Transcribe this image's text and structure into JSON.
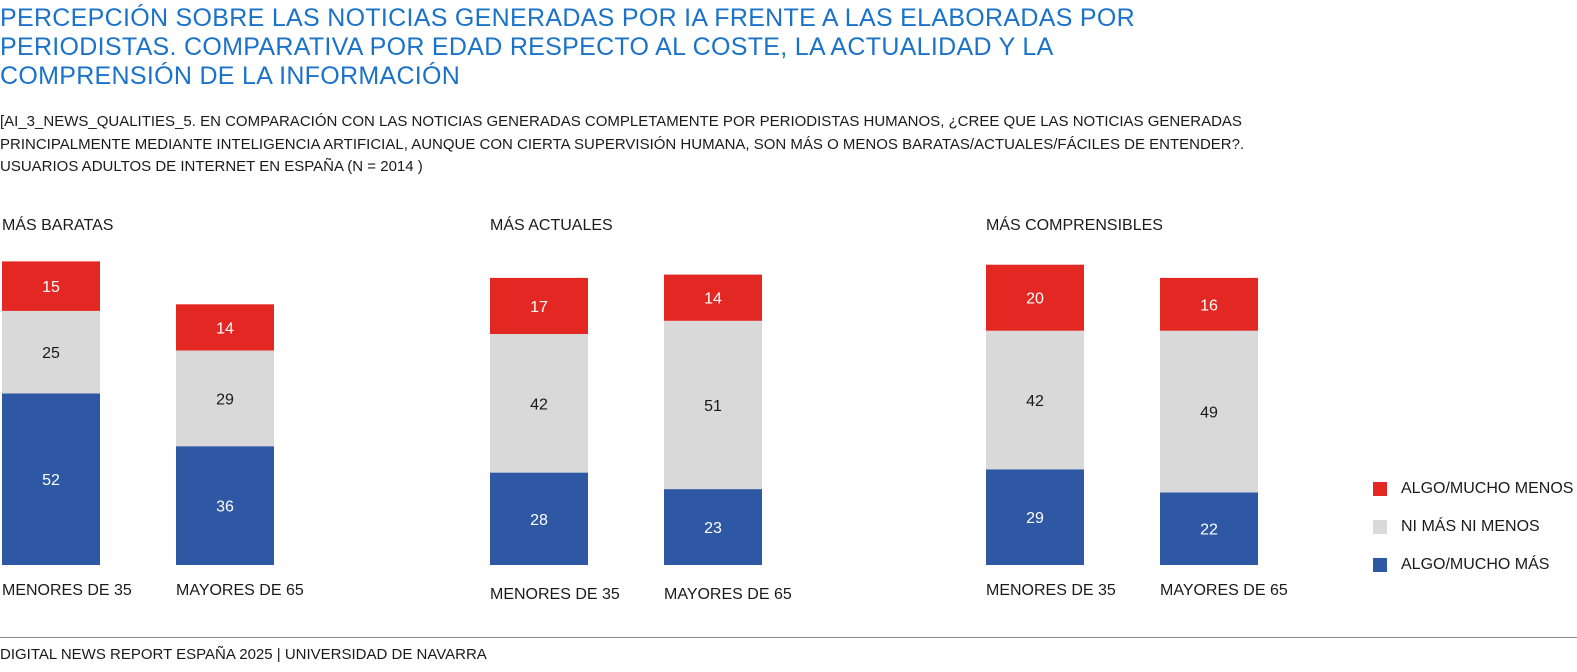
{
  "header": {
    "title": "PERCEPCIÓN SOBRE LAS NOTICIAS GENERADAS POR IA FRENTE A LAS ELABORADAS POR PERIODISTAS. COMPARATIVA POR EDAD RESPECTO AL COSTE, LA ACTUALIDAD Y LA COMPRENSIÓN DE LA INFORMACIÓN",
    "subtitle_lines": [
      "[AI_3_NEWS_QUALITIES_5. EN COMPARACIÓN CON LAS NOTICIAS GENERADAS COMPLETAMENTE POR PERIODISTAS HUMANOS, ¿CREE QUE LAS NOTICIAS GENERADAS",
      "PRINCIPALMENTE MEDIANTE INTELIGENCIA ARTIFICIAL, AUNQUE CON CIERTA SUPERVISIÓN HUMANA, SON MÁS O MENOS BARATAS/ACTUALES/FÁCILES DE ENTENDER?.",
      "USUARIOS ADULTOS DE INTERNET EN ESPAÑA (N = 2014 )"
    ]
  },
  "colors": {
    "title": "#1a72c9",
    "less": "#e32722",
    "neither": "#d9d9d9",
    "more": "#2e57a4"
  },
  "legend": {
    "items": [
      {
        "label": "ALGO/MUCHO MENOS",
        "color_key": "less"
      },
      {
        "label": "NI MÁS NI MENOS",
        "color_key": "neither"
      },
      {
        "label": "ALGO/MUCHO MÁS",
        "color_key": "more"
      }
    ]
  },
  "chart_data": [
    {
      "type": "bar",
      "stacked": true,
      "title": "MÁS BARATAS",
      "categories": [
        "MENORES DE 35",
        "MAYORES DE 65"
      ],
      "series": [
        {
          "name": "ALGO/MUCHO MÁS",
          "color_key": "more",
          "values": [
            52,
            36
          ]
        },
        {
          "name": "NI MÁS NI MENOS",
          "color_key": "neither",
          "values": [
            25,
            29
          ]
        },
        {
          "name": "ALGO/MUCHO MENOS",
          "color_key": "less",
          "values": [
            15,
            14
          ]
        }
      ]
    },
    {
      "type": "bar",
      "stacked": true,
      "title": "MÁS ACTUALES",
      "categories": [
        "MENORES DE 35",
        "MAYORES DE 65"
      ],
      "series": [
        {
          "name": "ALGO/MUCHO MÁS",
          "color_key": "more",
          "values": [
            28,
            23
          ]
        },
        {
          "name": "NI MÁS NI MENOS",
          "color_key": "neither",
          "values": [
            42,
            51
          ]
        },
        {
          "name": "ALGO/MUCHO MENOS",
          "color_key": "less",
          "values": [
            17,
            14
          ]
        }
      ]
    },
    {
      "type": "bar",
      "stacked": true,
      "title": "MÁS COMPRENSIBLES",
      "categories": [
        "MENORES DE 35",
        "MAYORES DE 65"
      ],
      "series": [
        {
          "name": "ALGO/MUCHO MÁS",
          "color_key": "more",
          "values": [
            29,
            22
          ]
        },
        {
          "name": "NI MÁS NI MENOS",
          "color_key": "neither",
          "values": [
            42,
            49
          ]
        },
        {
          "name": "ALGO/MUCHO MENOS",
          "color_key": "less",
          "values": [
            20,
            16
          ]
        }
      ]
    }
  ],
  "footer": {
    "source": "DIGITAL NEWS REPORT ESPAÑA 2025 | UNIVERSIDAD DE NAVARRA"
  }
}
